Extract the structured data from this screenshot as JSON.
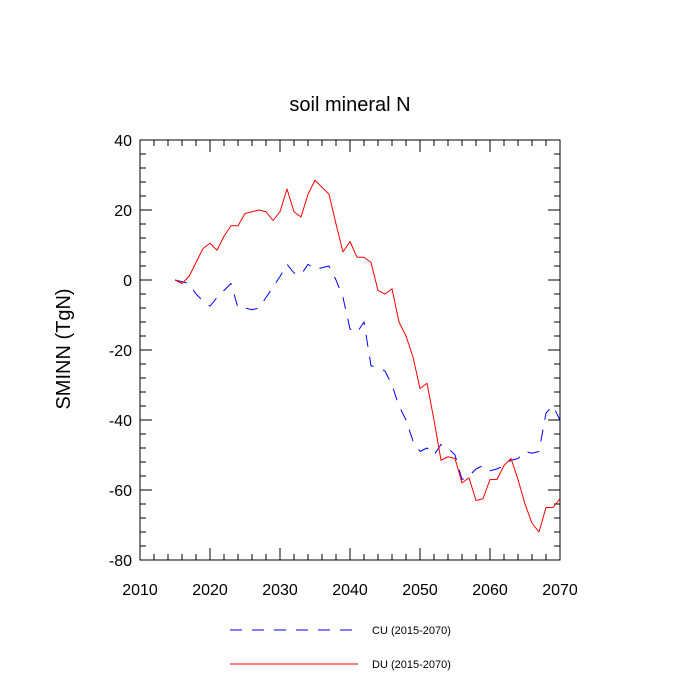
{
  "chart_data": {
    "type": "line",
    "title": "soil mineral N",
    "xlabel": "",
    "ylabel": "SMINN  (TgN)",
    "xlim": [
      2010,
      2070
    ],
    "ylim": [
      -80,
      40
    ],
    "xticks": [
      2010,
      2020,
      2030,
      2040,
      2050,
      2060,
      2070
    ],
    "yticks": [
      -80,
      -60,
      -40,
      -20,
      0,
      20,
      40
    ],
    "x": [
      2015,
      2016,
      2017,
      2018,
      2019,
      2020,
      2021,
      2022,
      2023,
      2024,
      2025,
      2026,
      2027,
      2028,
      2029,
      2030,
      2031,
      2032,
      2033,
      2034,
      2035,
      2036,
      2037,
      2038,
      2039,
      2040,
      2041,
      2042,
      2043,
      2044,
      2045,
      2046,
      2047,
      2048,
      2049,
      2050,
      2051,
      2052,
      2053,
      2054,
      2055,
      2056,
      2057,
      2058,
      2059,
      2060,
      2061,
      2062,
      2063,
      2064,
      2065,
      2066,
      2067,
      2068,
      2069,
      2070
    ],
    "series": [
      {
        "name": "CU (2015-2070)",
        "color": "#0000ff",
        "style": "dashed",
        "values": [
          0,
          -0.5,
          -1,
          -4,
          -6,
          -7.5,
          -5,
          -3,
          -1,
          -8,
          -8,
          -8.5,
          -8,
          -5,
          -2,
          1,
          4.5,
          2,
          1.5,
          4.5,
          3,
          3.5,
          4,
          0,
          -5,
          -14,
          -15,
          -12,
          -24.5,
          -25,
          -26,
          -30,
          -36,
          -40,
          -46,
          -49,
          -48,
          -50,
          -47,
          -48,
          -50,
          -57,
          -56,
          -54,
          -53,
          -54.5,
          -54,
          -53,
          -51.5,
          -51,
          -49,
          -49.5,
          -49,
          -38,
          -36,
          -40
        ]
      },
      {
        "name": "DU (2015-2070)",
        "color": "#ff0000",
        "style": "solid",
        "values": [
          0,
          -1,
          1,
          5,
          9,
          10.5,
          8.5,
          12.5,
          15.5,
          15.5,
          19,
          19.5,
          20,
          19.5,
          17,
          19.5,
          26,
          19.5,
          18,
          24.5,
          28.5,
          26.5,
          24.5,
          16,
          8,
          11,
          6.5,
          6.5,
          5,
          -3,
          -4,
          -2.5,
          -12,
          -16,
          -22,
          -31,
          -29.5,
          -40,
          -51.5,
          -50.5,
          -51,
          -58,
          -56.5,
          -63,
          -62.5,
          -57,
          -57,
          -53,
          -51,
          -57,
          -64,
          -69.5,
          -72,
          -65,
          -65,
          -62.5
        ]
      }
    ],
    "legend": [
      "CU (2015-2070)",
      "DU (2015-2070)"
    ],
    "legend_position": "bottom"
  }
}
